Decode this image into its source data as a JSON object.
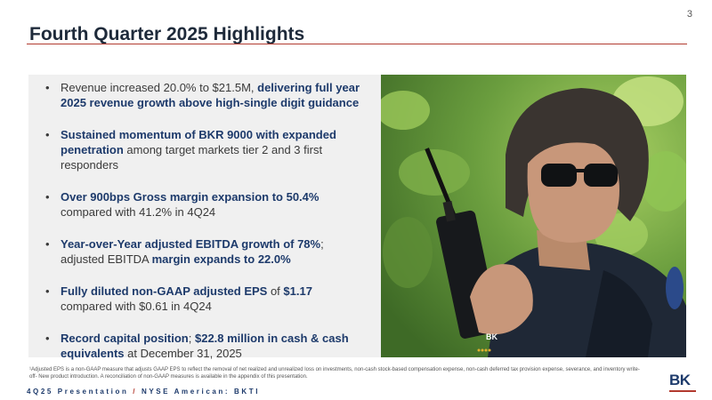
{
  "page": {
    "number": "3"
  },
  "title": "Fourth Quarter 2025 Highlights",
  "bullets": [
    {
      "segments": [
        {
          "text": "Revenue increased 20.0% to $21.5M, ",
          "bold": false
        },
        {
          "text": "delivering full year 2025 revenue growth above high-single digit guidance",
          "bold": true
        }
      ]
    },
    {
      "segments": [
        {
          "text": "Sustained momentum of BKR 9000 with expanded penetration",
          "bold": true
        },
        {
          "text": " among target markets tier 2 and 3 first responders",
          "bold": false
        }
      ]
    },
    {
      "segments": [
        {
          "text": "Over 900bps Gross margin expansion to 50.4%",
          "bold": true
        },
        {
          "text": " compared with 41.2% in 4Q24",
          "bold": false
        }
      ]
    },
    {
      "segments": [
        {
          "text": "Year-over-Year adjusted EBITDA growth of 78%",
          "bold": true
        },
        {
          "text": "; adjusted EBITDA ",
          "bold": false
        },
        {
          "text": "margin expands to 22.0%",
          "bold": true
        }
      ]
    },
    {
      "segments": [
        {
          "text": "Fully diluted non-GAAP adjusted EPS ",
          "bold": true
        },
        {
          "text": "of ",
          "bold": false
        },
        {
          "text": "$1.17",
          "bold": true
        },
        {
          "text": " compared with $0.61 in 4Q24",
          "bold": false
        }
      ]
    },
    {
      "segments": [
        {
          "text": "Record capital position",
          "bold": true
        },
        {
          "text": "; ",
          "bold": false
        },
        {
          "text": "$22.8 million in cash & cash equivalents",
          "bold": true
        },
        {
          "text": " at December 31, 2025",
          "bold": false
        }
      ]
    }
  ],
  "photo": {
    "radio_label": "BK",
    "radio_label_lower": "BK"
  },
  "footnote": "¹Adjusted EPS is a non-GAAP measure that adjusts GAAP EPS to reflect the removal of net realized and unrealized loss on investments, non-cash stock-based compensation expense, non-cash deferred tax provision expense, severance, and inventory write-off- New product introduction.  A reconciliation of non-GAAP measures is available in the appendix of this presentation.",
  "footer": {
    "left": "4Q25 Presentation",
    "separator": "/",
    "right": "NYSE American: BKTI"
  },
  "logo": {
    "text": "BK"
  },
  "colors": {
    "navy": "#1d3a6b",
    "accent_red": "#b23a2f",
    "panel_gray": "#f0f0f0"
  }
}
